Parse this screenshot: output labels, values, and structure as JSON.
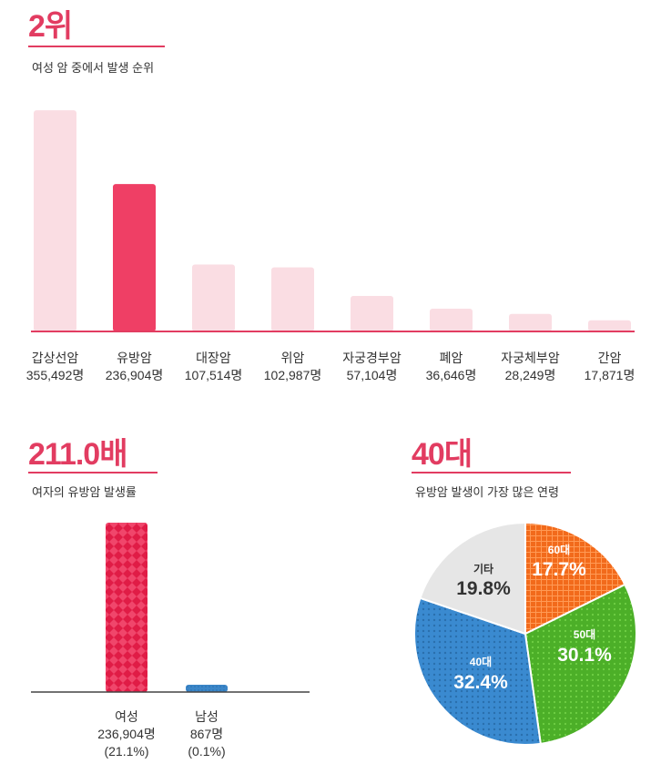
{
  "section1": {
    "rank": "2위",
    "subtitle": "여성 암 중에서 발생 순위"
  },
  "section2": {
    "headline": "211.0배",
    "subtitle": "여자의 유방암 발생률"
  },
  "section3": {
    "headline": "40대",
    "subtitle": "유방암 발생이 가장 많은 연령"
  },
  "colors": {
    "accent": "#e23c61",
    "bar_light": "#fadde3",
    "bar_highlight": "#ef3f65",
    "male_bar": "#3b86c8",
    "pie_60s": "#f26a1b",
    "pie_50s": "#4caf28",
    "pie_40s": "#3a8ad0",
    "pie_other": "#e6e6e6"
  },
  "chart_data": [
    {
      "type": "bar",
      "title": "여성 암 중에서 발생 순위",
      "categories": [
        "갑상선암",
        "유방암",
        "대장암",
        "위암",
        "자궁경부암",
        "폐암",
        "자궁체부암",
        "간암"
      ],
      "value_labels": [
        "355,492명",
        "236,904명",
        "107,514명",
        "102,987명",
        "57,104명",
        "36,646명",
        "28,249명",
        "17,871명"
      ],
      "values": [
        355492,
        236904,
        107514,
        102987,
        57104,
        36646,
        28249,
        17871
      ],
      "highlight": "유방암",
      "ylim": [
        0,
        360000
      ],
      "grid": false
    },
    {
      "type": "bar",
      "title": "여자의 유방암 발생률",
      "categories": [
        "여성",
        "남성"
      ],
      "values": [
        236904,
        867
      ],
      "value_labels": [
        "236,904명",
        "867명"
      ],
      "percent_labels": [
        "(21.1%)",
        "(0.1%)"
      ],
      "percents": [
        21.1,
        0.1
      ],
      "grid": false
    },
    {
      "type": "pie",
      "title": "유방암 발생이 가장 많은 연령",
      "labels": [
        "60대",
        "50대",
        "40대",
        "기타"
      ],
      "values": [
        17.7,
        30.1,
        32.4,
        19.8
      ],
      "value_labels": [
        "17.7%",
        "30.1%",
        "32.4%",
        "19.8%"
      ]
    }
  ]
}
